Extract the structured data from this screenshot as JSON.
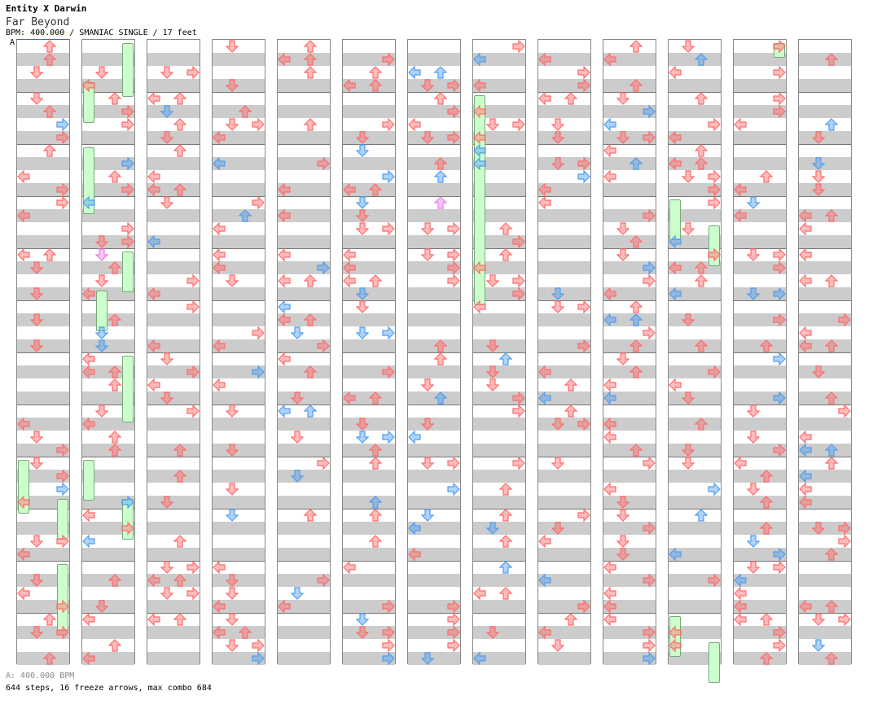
{
  "header": {
    "artist": "Entity X Darwin",
    "title": "Far Beyond",
    "info": "BPM: 400.000 / SMANIAC SINGLE / 17 feet"
  },
  "bpm_marker": "A",
  "footer": {
    "bpm_line": "A: 400.000 BPM",
    "stats": "644 steps, 16 freeze arrows, max combo 684"
  },
  "colors": {
    "red_arrow": "#ff6b6b",
    "blue_arrow": "#4f9ef0",
    "pink_arrow": "#e87ce8",
    "freeze": "#ccffcc",
    "stripe": "#cccccc"
  }
}
